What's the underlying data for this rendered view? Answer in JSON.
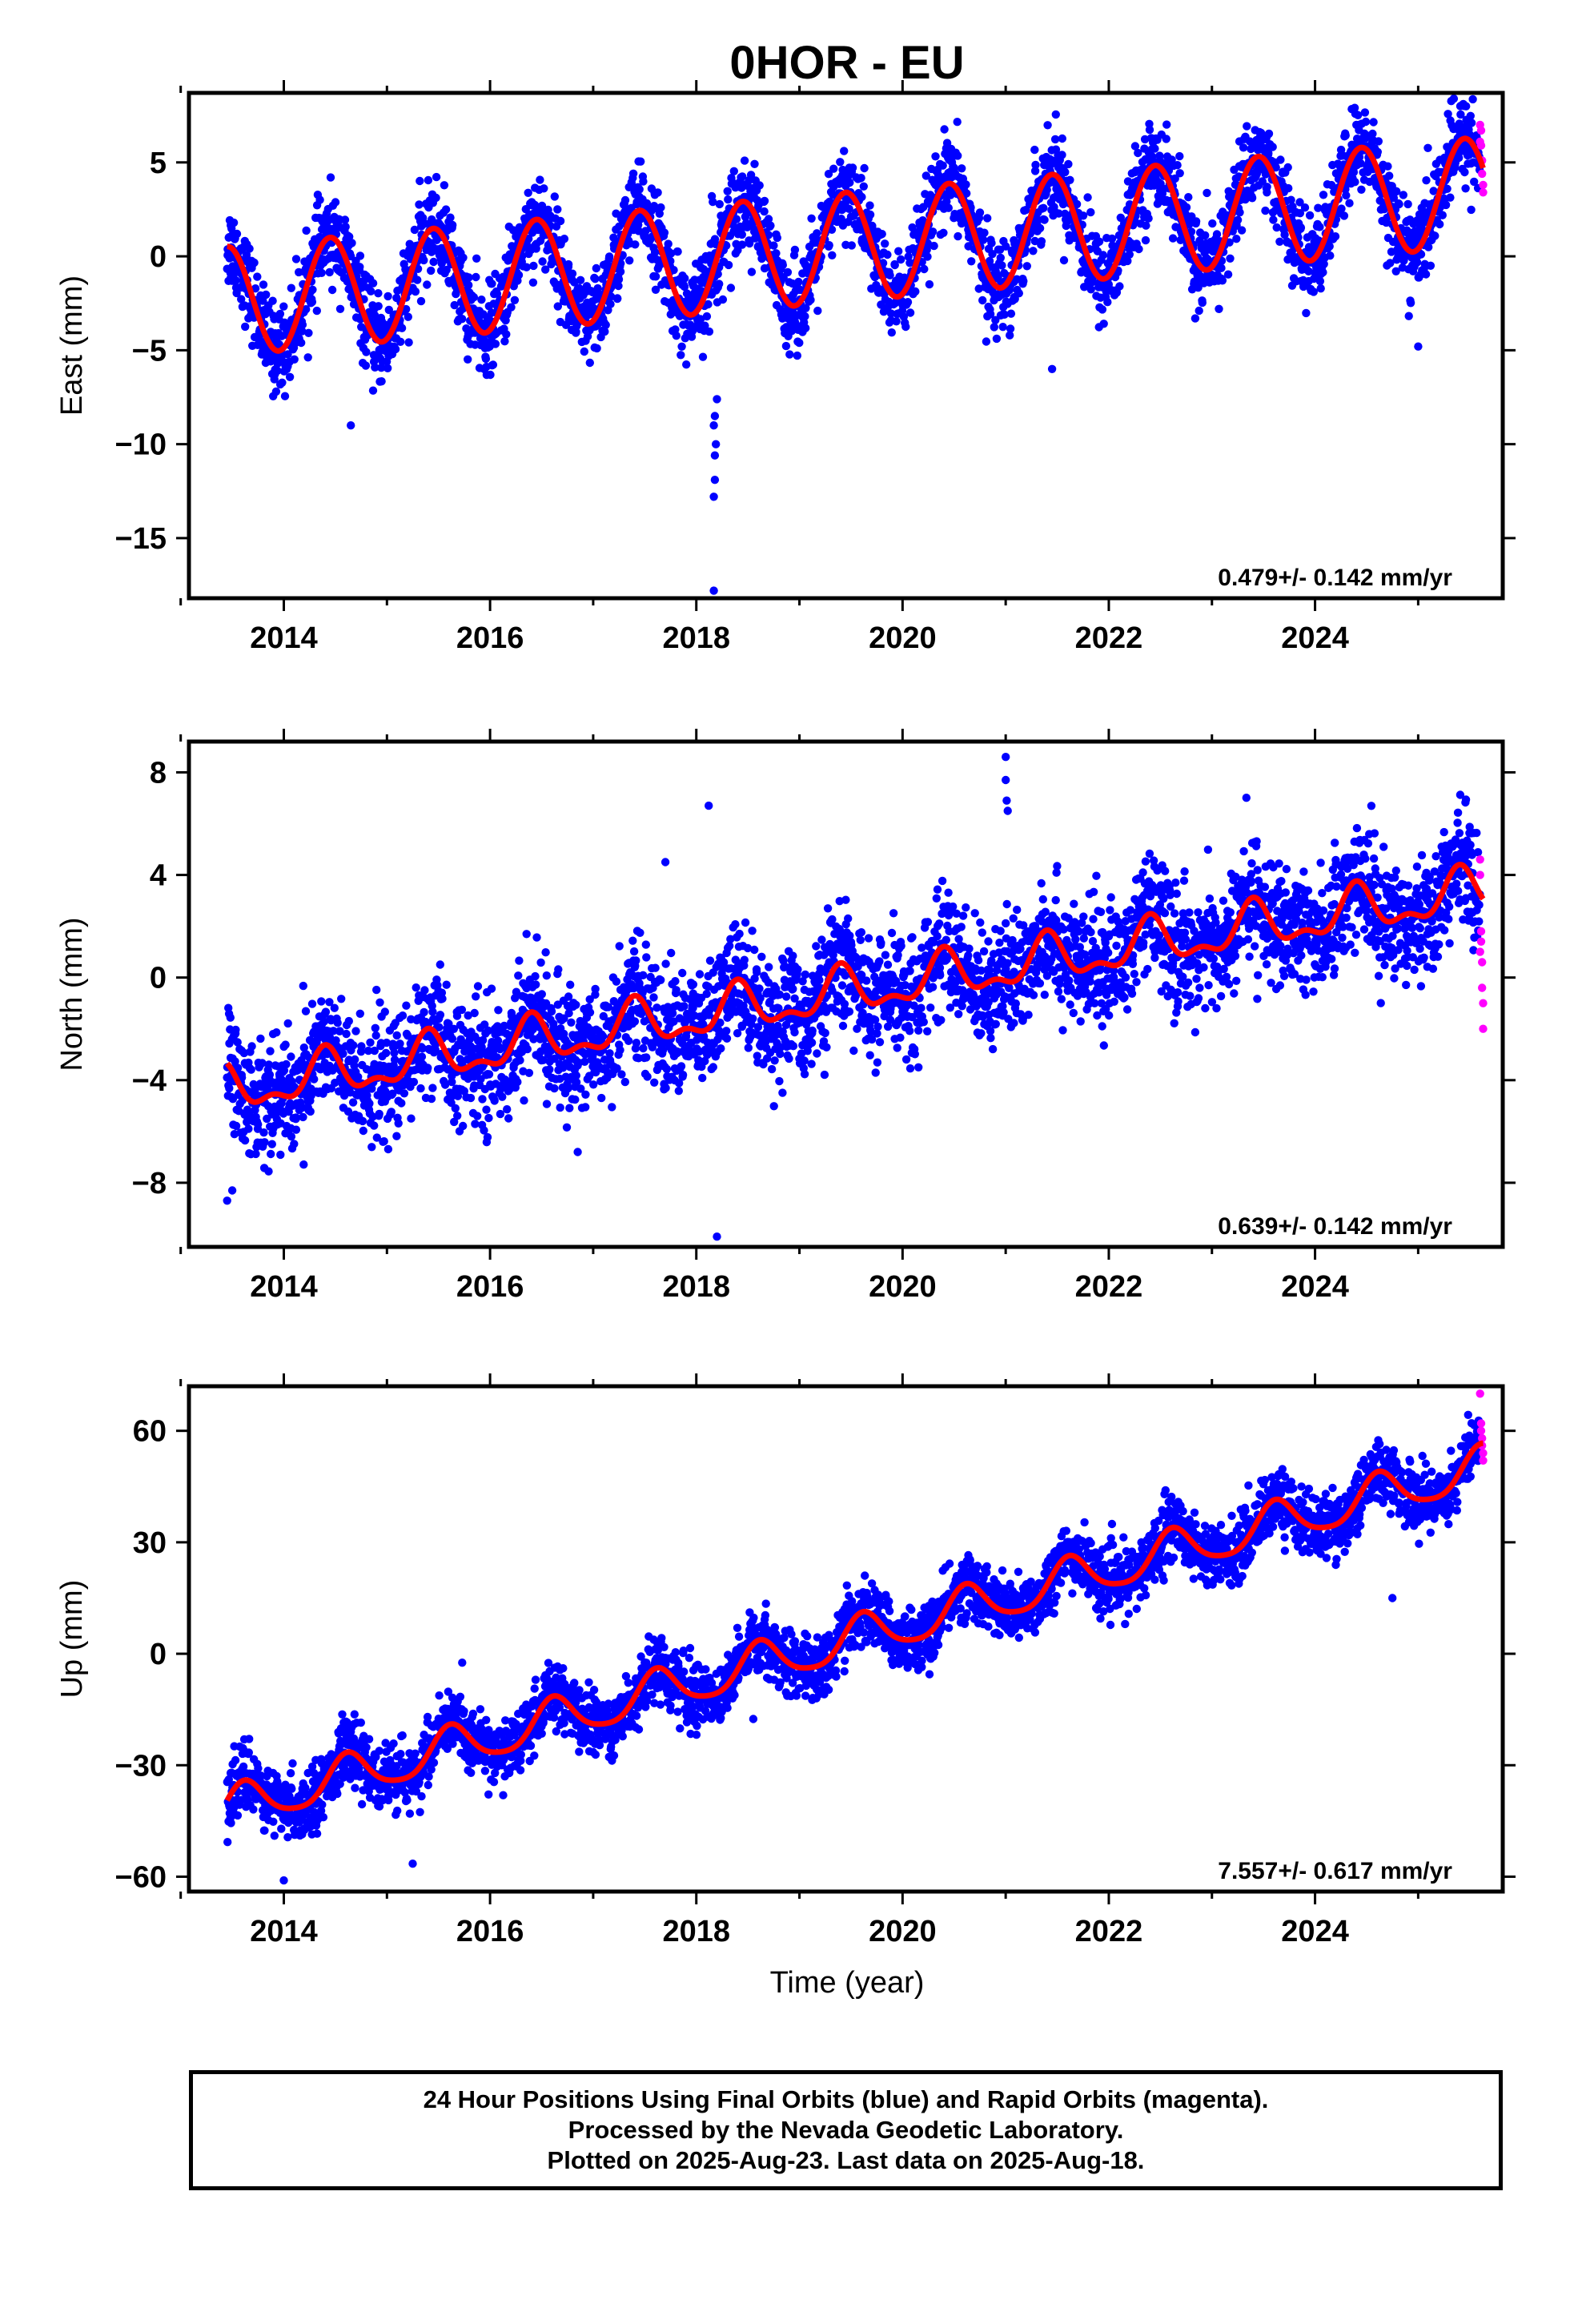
{
  "page": {
    "title": "0HOR - EU",
    "footer_lines": [
      "24 Hour Positions Using Final Orbits (blue) and Rapid Orbits (magenta).",
      "Processed by the Nevada Geodetic Laboratory.",
      "Plotted on 2025-Aug-23. Last data on 2025-Aug-18."
    ]
  },
  "colors": {
    "final": "#0000ff",
    "rapid": "#ff00ff",
    "fit": "#ff0000",
    "axis": "#000000"
  },
  "chart_data": [
    {
      "type": "scatter",
      "ylabel": "East (mm)",
      "xlim": [
        2013.08,
        2025.82
      ],
      "ylim": [
        -18.2,
        8.7
      ],
      "xticks": [
        2014,
        2016,
        2018,
        2020,
        2022,
        2024
      ],
      "xtick_labels": [
        "2014",
        "2016",
        "2018",
        "2020",
        "2022",
        "2024"
      ],
      "yticks": [
        5,
        0,
        -5,
        -10,
        -15
      ],
      "ytick_labels": [
        "5",
        "0",
        "−5",
        "−10",
        "−15"
      ],
      "rate_label": "0.479+/- 0.142 mm/yr",
      "trend": {
        "rate_mm_per_yr": 0.479,
        "value_at_2013_5": -2.35,
        "annual_amplitude": 2.9,
        "annual_peak_year_fraction": 0.45,
        "semiannual_amplitude": 0.0,
        "semiannual_peak_year_fraction": 0.0
      },
      "data_span": [
        2013.45,
        2025.63
      ],
      "scatter_sd": 1.15,
      "outliers": [
        [
          2018.17,
          -17.8
        ],
        [
          2018.17,
          -12.8
        ],
        [
          2018.18,
          -11.9
        ],
        [
          2018.18,
          -10.6
        ],
        [
          2018.19,
          -10.0
        ],
        [
          2018.17,
          -9.0
        ],
        [
          2018.18,
          -8.5
        ],
        [
          2018.2,
          -7.6
        ],
        [
          2018.15,
          3.2
        ],
        [
          2018.16,
          2.9
        ],
        [
          2014.65,
          -9.0
        ],
        [
          2021.45,
          -6.0
        ],
        [
          2025.0,
          -4.8
        ]
      ],
      "rapid_points": [
        [
          2025.6,
          7.0
        ],
        [
          2025.61,
          6.7
        ],
        [
          2025.61,
          5.9
        ],
        [
          2025.62,
          5.1
        ],
        [
          2025.62,
          4.4
        ],
        [
          2025.63,
          3.8
        ],
        [
          2025.63,
          3.4
        ],
        [
          2025.6,
          6.1
        ]
      ]
    },
    {
      "type": "scatter",
      "ylabel": "North (mm)",
      "xlim": [
        2013.08,
        2025.82
      ],
      "ylim": [
        -10.5,
        9.2
      ],
      "xticks": [
        2014,
        2016,
        2018,
        2020,
        2022,
        2024
      ],
      "xtick_labels": [
        "2014",
        "2016",
        "2018",
        "2020",
        "2022",
        "2024"
      ],
      "yticks": [
        8,
        4,
        0,
        -4,
        -8
      ],
      "ytick_labels": [
        "8",
        "4",
        "0",
        "−4",
        "−8"
      ],
      "rate_label": "0.639+/- 0.142 mm/yr",
      "trend": {
        "rate_mm_per_yr": 0.639,
        "value_at_2013_5": -4.4,
        "annual_amplitude": 0.8,
        "annual_peak_year_fraction": 0.4,
        "semiannual_amplitude": 0.4,
        "semiannual_peak_year_fraction": 0.4
      },
      "data_span": [
        2013.45,
        2025.63
      ],
      "scatter_sd": 1.15,
      "outliers": [
        [
          2018.12,
          6.7
        ],
        [
          2021.0,
          8.6
        ],
        [
          2021.0,
          7.7
        ],
        [
          2021.01,
          6.9
        ],
        [
          2021.02,
          6.5
        ],
        [
          2018.2,
          -10.1
        ],
        [
          2013.45,
          -8.7
        ],
        [
          2013.5,
          -8.3
        ],
        [
          2016.85,
          -6.8
        ],
        [
          2017.7,
          4.5
        ]
      ],
      "rapid_points": [
        [
          2025.6,
          4.6
        ],
        [
          2025.6,
          4.0
        ],
        [
          2025.61,
          1.8
        ],
        [
          2025.61,
          1.4
        ],
        [
          2025.62,
          0.6
        ],
        [
          2025.62,
          -0.4
        ],
        [
          2025.63,
          -1.0
        ],
        [
          2025.63,
          -2.0
        ],
        [
          2025.6,
          1.0
        ]
      ]
    },
    {
      "type": "scatter",
      "ylabel": "Up (mm)",
      "xlabel": "Time (year)",
      "xlim": [
        2013.08,
        2025.82
      ],
      "ylim": [
        -64,
        72
      ],
      "xticks": [
        2014,
        2016,
        2018,
        2020,
        2022,
        2024
      ],
      "xtick_labels": [
        "2014",
        "2016",
        "2018",
        "2020",
        "2022",
        "2024"
      ],
      "yticks": [
        60,
        30,
        0,
        -30,
        -60
      ],
      "ytick_labels": [
        "60",
        "30",
        "0",
        "−30",
        "−60"
      ],
      "rate_label": "7.557+/- 0.617 mm/yr",
      "trend": {
        "rate_mm_per_yr": 7.557,
        "value_at_2013_5": -41.5,
        "annual_amplitude": 5.6,
        "annual_peak_year_fraction": 0.62,
        "semiannual_amplitude": 1.0,
        "semiannual_peak_year_fraction": 0.1
      },
      "data_span": [
        2013.45,
        2025.63
      ],
      "scatter_sd": 4.2,
      "outliers": [
        [
          2014.0,
          -61.0
        ],
        [
          2015.25,
          -56.5
        ],
        [
          2022.55,
          44.0
        ],
        [
          2024.75,
          15.0
        ]
      ],
      "rapid_points": [
        [
          2025.6,
          70.0
        ],
        [
          2025.61,
          62.0
        ],
        [
          2025.61,
          60.0
        ],
        [
          2025.62,
          58.0
        ],
        [
          2025.62,
          56.0
        ],
        [
          2025.63,
          54.0
        ],
        [
          2025.63,
          52.0
        ]
      ]
    }
  ]
}
